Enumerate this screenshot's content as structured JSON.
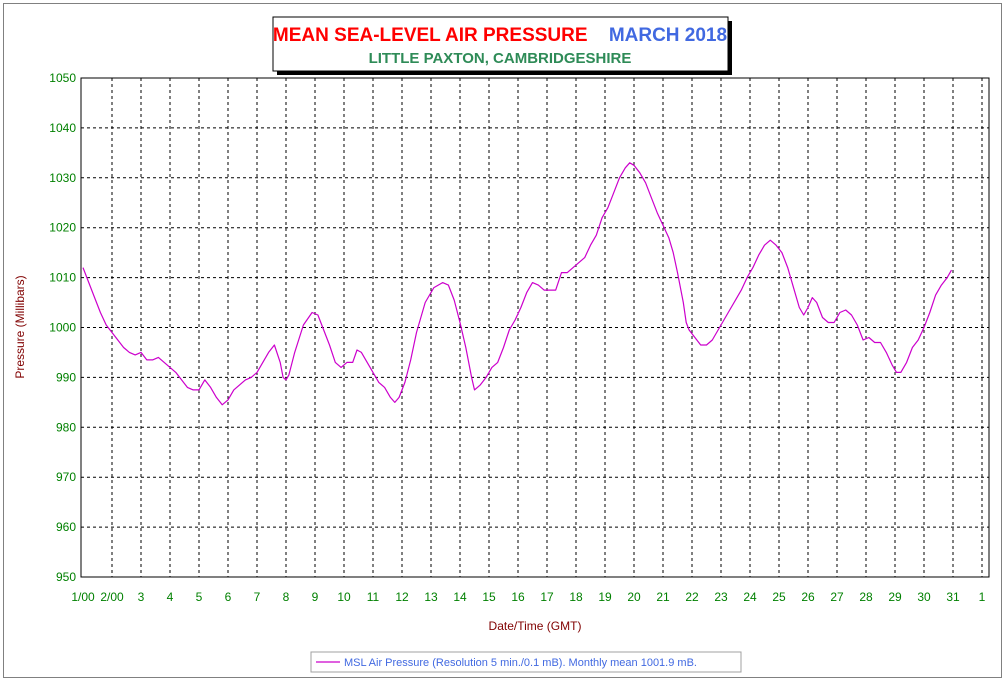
{
  "chart_data": {
    "type": "line",
    "title": "MEAN SEA-LEVEL AIR PRESSURE",
    "title_period": "MARCH 2018",
    "subtitle": "LITTLE PAXTON, CAMBRIDGESHIRE",
    "xlabel": "Date/Time (GMT)",
    "ylabel": "Pressure (Millibars)",
    "ylim": [
      950,
      1050
    ],
    "yticks": [
      950,
      960,
      970,
      980,
      990,
      1000,
      1010,
      1020,
      1030,
      1040,
      1050
    ],
    "xlim": [
      0,
      31.4
    ],
    "x_unit": "days elapsed from 1 March 2018 00:00 GMT",
    "x_tick_labels": [
      "1/00",
      "2/00",
      "3",
      "4",
      "5",
      "6",
      "7",
      "8",
      "9",
      "10",
      "11",
      "12",
      "13",
      "14",
      "15",
      "16",
      "17",
      "18",
      "19",
      "20",
      "21",
      "22",
      "23",
      "24",
      "25",
      "26",
      "27",
      "28",
      "29",
      "30",
      "31",
      "1"
    ],
    "grid": true,
    "legend": "bottom-center",
    "colors": {
      "series": "#cc00cc",
      "title": "#ff0000",
      "title_period": "#4169e1",
      "subtitle": "#2e8b57",
      "y_tick": "#008000",
      "x_tick": "#008000",
      "ylabel": "#800000",
      "xlabel": "#800000",
      "legend_text": "#4169e1"
    },
    "series": [
      {
        "name": "MSL Air Pressure (Resolution 5 min./0.1 mB). Monthly mean 1001.9 mB.",
        "points": [
          [
            0.0,
            1012
          ],
          [
            0.2,
            1009
          ],
          [
            0.4,
            1006
          ],
          [
            0.6,
            1003
          ],
          [
            0.8,
            1000.5
          ],
          [
            1.0,
            999
          ],
          [
            1.2,
            997.5
          ],
          [
            1.4,
            996
          ],
          [
            1.6,
            995
          ],
          [
            1.8,
            994.5
          ],
          [
            2.0,
            995
          ],
          [
            2.2,
            993.5
          ],
          [
            2.4,
            993.5
          ],
          [
            2.6,
            994
          ],
          [
            2.8,
            993
          ],
          [
            3.0,
            992
          ],
          [
            3.2,
            991
          ],
          [
            3.4,
            989.5
          ],
          [
            3.6,
            988
          ],
          [
            3.8,
            987.5
          ],
          [
            4.0,
            987.5
          ],
          [
            4.2,
            989.5
          ],
          [
            4.4,
            988
          ],
          [
            4.6,
            986
          ],
          [
            4.8,
            984.5
          ],
          [
            5.0,
            985.5
          ],
          [
            5.2,
            987.5
          ],
          [
            5.4,
            988.5
          ],
          [
            5.6,
            989.5
          ],
          [
            5.8,
            990
          ],
          [
            6.0,
            991
          ],
          [
            6.2,
            993
          ],
          [
            6.4,
            995
          ],
          [
            6.6,
            996.5
          ],
          [
            6.8,
            993
          ],
          [
            6.9,
            990
          ],
          [
            7.0,
            989.5
          ],
          [
            7.1,
            990.5
          ],
          [
            7.3,
            995
          ],
          [
            7.6,
            1000.5
          ],
          [
            7.9,
            1003
          ],
          [
            8.1,
            1002.5
          ],
          [
            8.3,
            999.5
          ],
          [
            8.5,
            996.5
          ],
          [
            8.7,
            993
          ],
          [
            8.9,
            992
          ],
          [
            9.1,
            993
          ],
          [
            9.3,
            993
          ],
          [
            9.45,
            995.5
          ],
          [
            9.6,
            995
          ],
          [
            9.8,
            993
          ],
          [
            10.0,
            991
          ],
          [
            10.2,
            989
          ],
          [
            10.4,
            988
          ],
          [
            10.6,
            986
          ],
          [
            10.75,
            985
          ],
          [
            10.9,
            986
          ],
          [
            11.1,
            989
          ],
          [
            11.3,
            993.5
          ],
          [
            11.5,
            999
          ],
          [
            11.8,
            1005
          ],
          [
            12.1,
            1008
          ],
          [
            12.4,
            1009
          ],
          [
            12.6,
            1008.5
          ],
          [
            12.8,
            1005.5
          ],
          [
            13.0,
            1001
          ],
          [
            13.2,
            996
          ],
          [
            13.4,
            990
          ],
          [
            13.5,
            987.5
          ],
          [
            13.7,
            988.5
          ],
          [
            13.9,
            990
          ],
          [
            14.1,
            992
          ],
          [
            14.3,
            993
          ],
          [
            14.5,
            996
          ],
          [
            14.7,
            999.5
          ],
          [
            14.9,
            1001.5
          ],
          [
            15.1,
            1004
          ],
          [
            15.3,
            1007
          ],
          [
            15.5,
            1009
          ],
          [
            15.7,
            1008.5
          ],
          [
            15.9,
            1007.5
          ],
          [
            16.1,
            1007.5
          ],
          [
            16.3,
            1007.5
          ],
          [
            16.5,
            1011
          ],
          [
            16.7,
            1011
          ],
          [
            16.9,
            1012
          ],
          [
            17.1,
            1013
          ],
          [
            17.3,
            1014
          ],
          [
            17.5,
            1016.5
          ],
          [
            17.7,
            1018.5
          ],
          [
            17.9,
            1022
          ],
          [
            18.1,
            1024
          ],
          [
            18.3,
            1027
          ],
          [
            18.5,
            1030
          ],
          [
            18.7,
            1032
          ],
          [
            18.85,
            1033
          ],
          [
            19.0,
            1032.5
          ],
          [
            19.2,
            1031
          ],
          [
            19.4,
            1029
          ],
          [
            19.6,
            1026
          ],
          [
            19.8,
            1023
          ],
          [
            20.0,
            1020.5
          ],
          [
            20.2,
            1018
          ],
          [
            20.35,
            1015
          ],
          [
            20.5,
            1011
          ],
          [
            20.7,
            1005
          ],
          [
            20.8,
            1001
          ],
          [
            20.9,
            999.5
          ],
          [
            21.1,
            998
          ],
          [
            21.3,
            996.5
          ],
          [
            21.5,
            996.5
          ],
          [
            21.7,
            997.5
          ],
          [
            21.9,
            999.5
          ],
          [
            22.1,
            1001.5
          ],
          [
            22.3,
            1003.5
          ],
          [
            22.5,
            1005.5
          ],
          [
            22.7,
            1007.5
          ],
          [
            22.9,
            1010
          ],
          [
            23.1,
            1012
          ],
          [
            23.3,
            1014.5
          ],
          [
            23.5,
            1016.5
          ],
          [
            23.7,
            1017.5
          ],
          [
            23.9,
            1016.5
          ],
          [
            24.1,
            1015
          ],
          [
            24.3,
            1012
          ],
          [
            24.5,
            1008
          ],
          [
            24.7,
            1004
          ],
          [
            24.85,
            1002.5
          ],
          [
            25.0,
            1004
          ],
          [
            25.15,
            1006
          ],
          [
            25.3,
            1005
          ],
          [
            25.5,
            1002
          ],
          [
            25.7,
            1001
          ],
          [
            25.9,
            1001
          ],
          [
            26.1,
            1003
          ],
          [
            26.3,
            1003.5
          ],
          [
            26.5,
            1002.5
          ],
          [
            26.7,
            1000.5
          ],
          [
            26.9,
            997.5
          ],
          [
            27.1,
            998
          ],
          [
            27.3,
            997
          ],
          [
            27.5,
            997
          ],
          [
            27.7,
            995
          ],
          [
            27.9,
            992.5
          ],
          [
            28.05,
            991
          ],
          [
            28.2,
            991
          ],
          [
            28.4,
            993
          ],
          [
            28.6,
            996
          ],
          [
            28.8,
            997.5
          ],
          [
            29.0,
            1000
          ],
          [
            29.2,
            1003
          ],
          [
            29.4,
            1006.5
          ],
          [
            29.6,
            1008.5
          ],
          [
            29.8,
            1010
          ],
          [
            29.95,
            1011.5
          ]
        ]
      }
    ]
  }
}
